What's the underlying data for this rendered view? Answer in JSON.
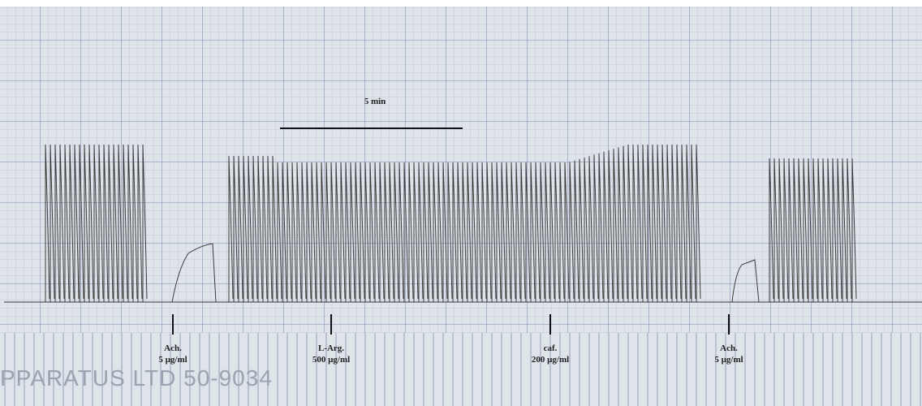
{
  "scale_bar": {
    "label": "5 min"
  },
  "annotations": [
    {
      "drug": "Ach.",
      "dose": "5 µg/ml"
    },
    {
      "drug": "L-Arg.",
      "dose": "500 µg/ml"
    },
    {
      "drug": "caf.",
      "dose": "200 µg/ml"
    },
    {
      "drug": "Ach.",
      "dose": "5 µg/ml"
    }
  ],
  "paper_print": "PPARATUS LTD  50-9034"
}
